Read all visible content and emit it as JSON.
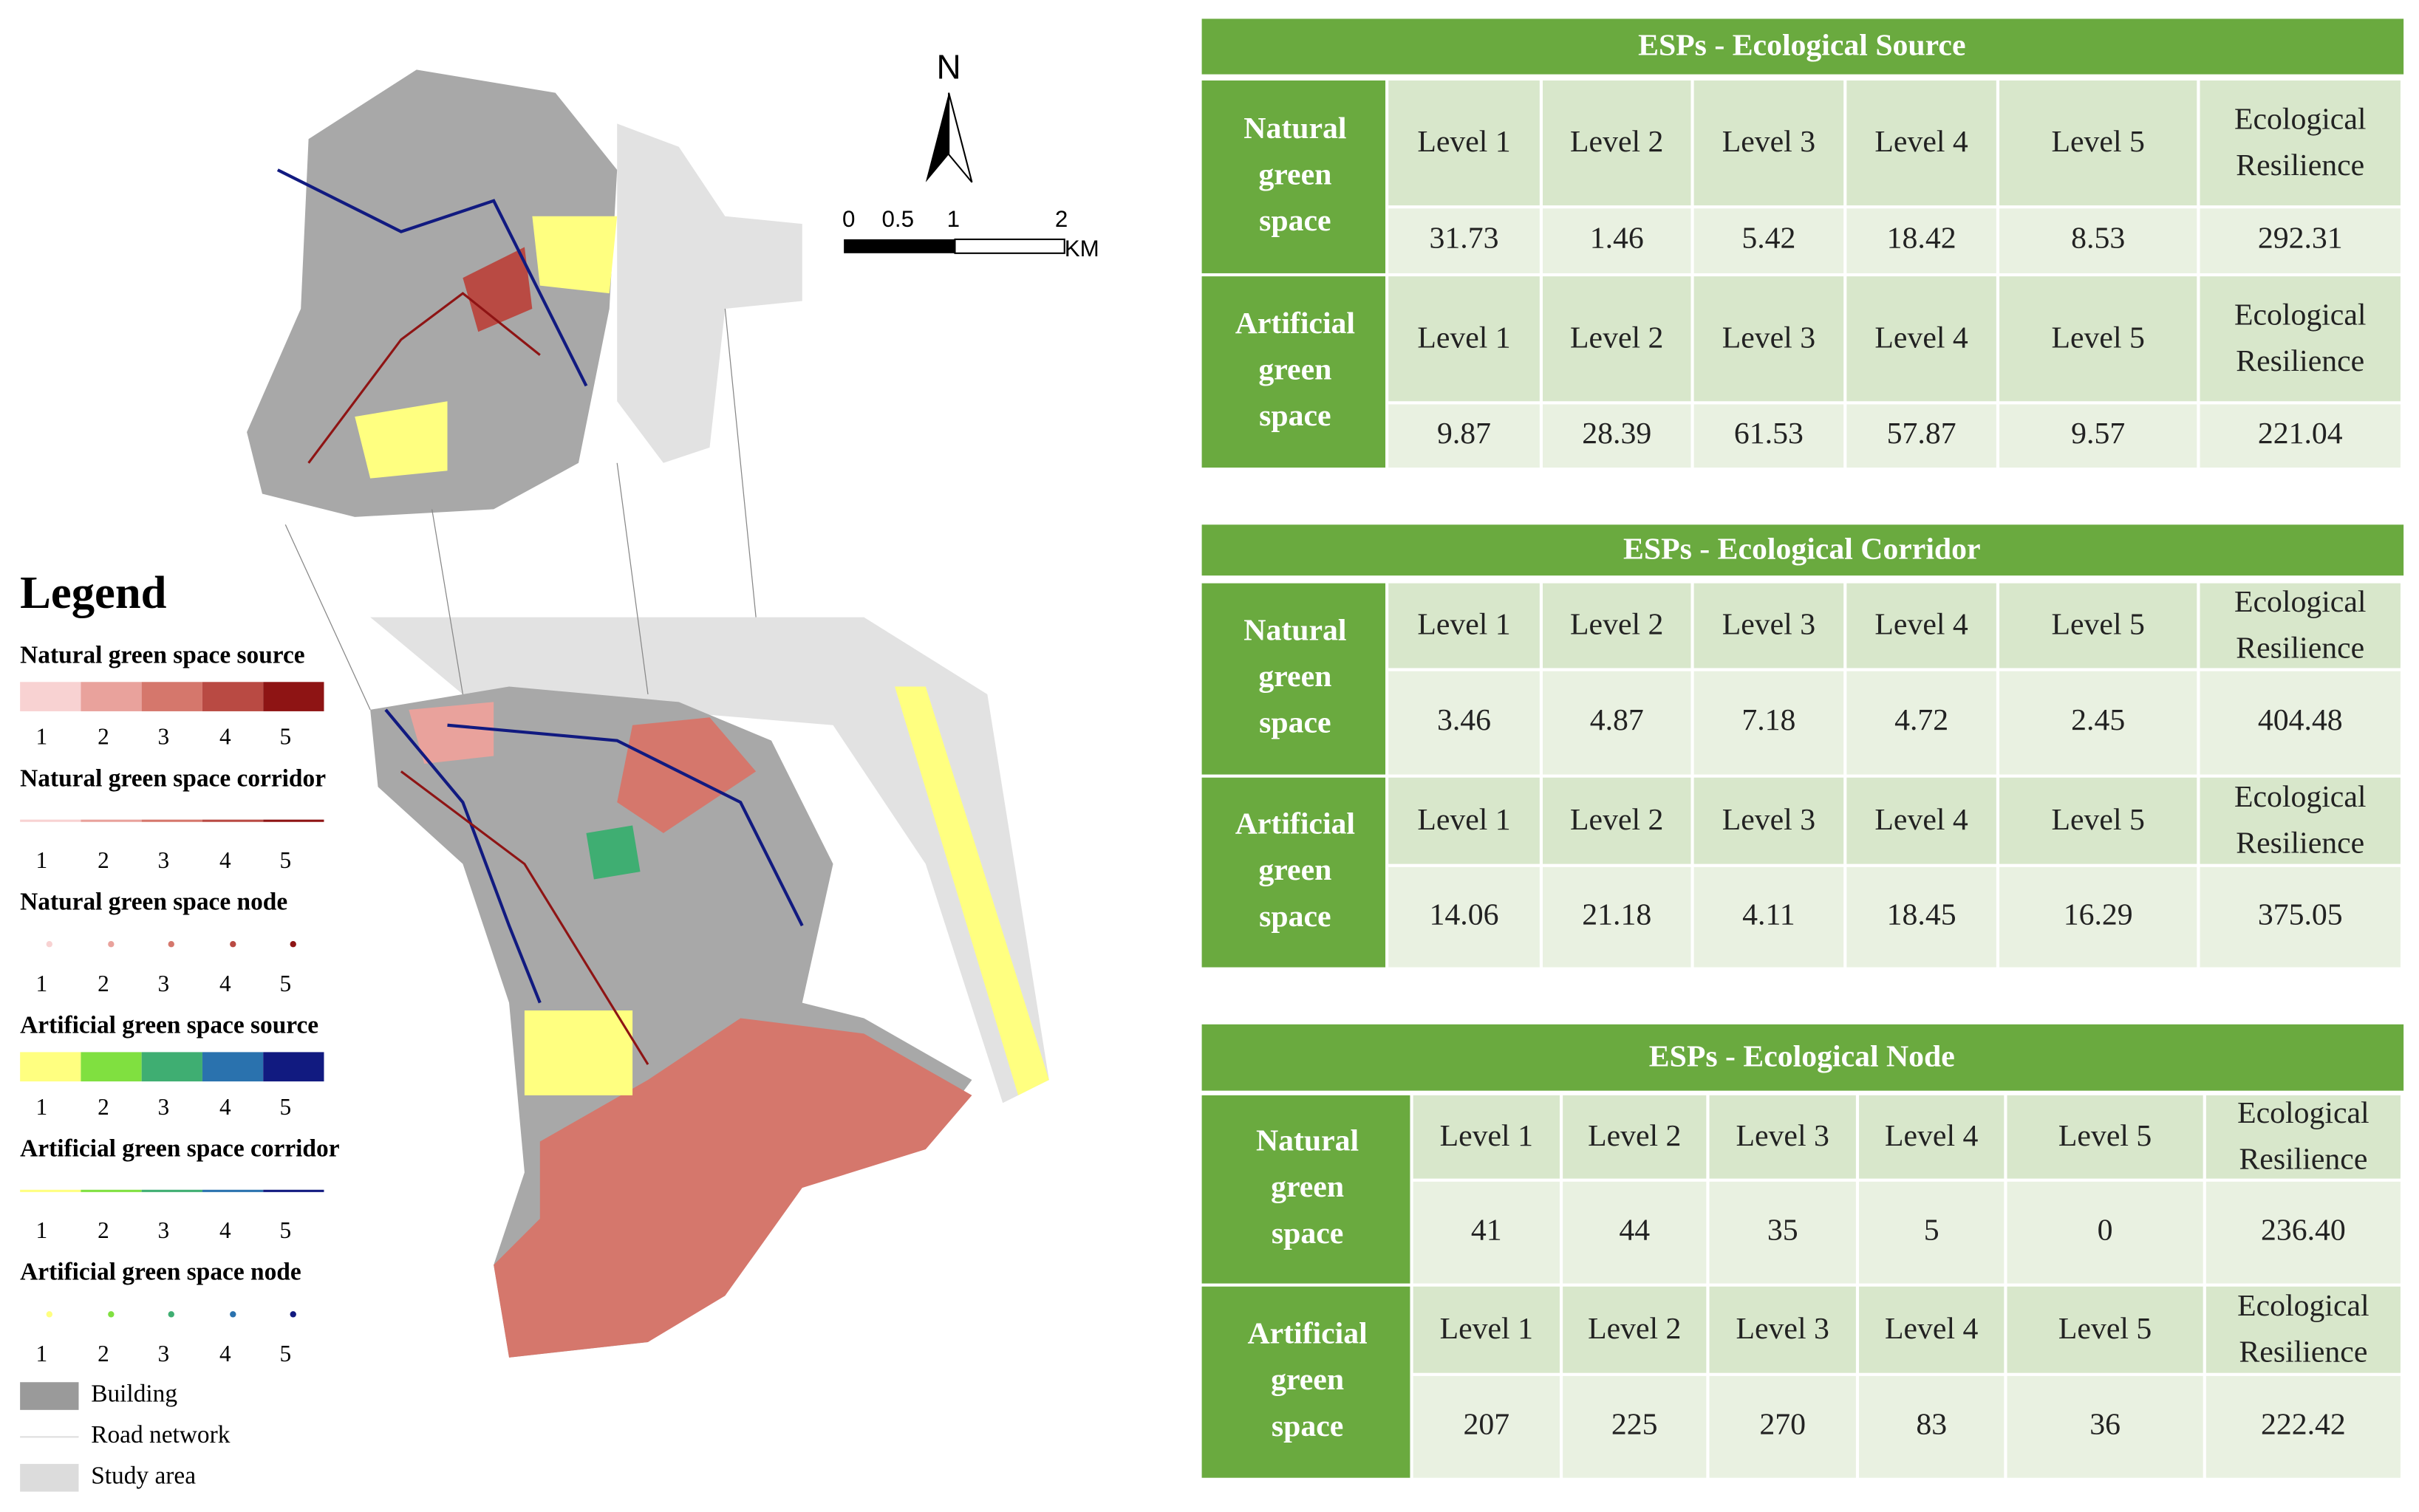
{
  "map": {
    "north": "N",
    "scale_labels": [
      "0",
      "0.5",
      "1",
      "2"
    ],
    "scale_unit": "KM"
  },
  "legend": {
    "title": "Legend",
    "groups": [
      {
        "title": "Natural green space source",
        "kind": "swatch",
        "levels": [
          "1",
          "2",
          "3",
          "4",
          "5"
        ],
        "colors": [
          "#f8d2d2",
          "#e9a29c",
          "#d5776c",
          "#b94a43",
          "#8e1414"
        ]
      },
      {
        "title": "Natural green space corridor",
        "kind": "line",
        "levels": [
          "1",
          "2",
          "3",
          "4",
          "5"
        ],
        "colors": [
          "#f8d2d2",
          "#e9a29c",
          "#d5776c",
          "#b94a43",
          "#8e1414"
        ]
      },
      {
        "title": "Natural green space node",
        "kind": "dot",
        "levels": [
          "1",
          "2",
          "3",
          "4",
          "5"
        ],
        "colors": [
          "#f8d2d2",
          "#e9a29c",
          "#d5776c",
          "#b94a43",
          "#8e1414"
        ]
      },
      {
        "title": "Artificial green space source",
        "kind": "swatch",
        "levels": [
          "1",
          "2",
          "3",
          "4",
          "5"
        ],
        "colors": [
          "#ffff80",
          "#80e040",
          "#3fae72",
          "#2a72ae",
          "#111a80"
        ]
      },
      {
        "title": "Artificial green space corridor",
        "kind": "line",
        "levels": [
          "1",
          "2",
          "3",
          "4",
          "5"
        ],
        "colors": [
          "#ffff80",
          "#80e040",
          "#3fae72",
          "#2a72ae",
          "#111a80"
        ]
      },
      {
        "title": "Artificial green space node",
        "kind": "dot",
        "levels": [
          "1",
          "2",
          "3",
          "4",
          "5"
        ],
        "colors": [
          "#ffff80",
          "#80e040",
          "#3fae72",
          "#2a72ae",
          "#111a80"
        ]
      }
    ],
    "extras": [
      {
        "label": "Building",
        "color": "#9a9a9a"
      },
      {
        "label": "Road network",
        "color": "#f0f0f0"
      },
      {
        "label": "Study area",
        "color": "#dcdcdc"
      }
    ]
  },
  "tables": [
    {
      "title": "ESPs - Ecological Source",
      "headers": [
        "Level 1",
        "Level 2",
        "Level 3",
        "Level 4",
        "Level 5",
        "Ecological Resilience"
      ],
      "groups": [
        {
          "name": "Natural green space",
          "values": [
            "31.73",
            "1.46",
            "5.42",
            "18.42",
            "8.53",
            "292.31"
          ]
        },
        {
          "name": "Artificial green space",
          "values": [
            "9.87",
            "28.39",
            "61.53",
            "57.87",
            "9.57",
            "221.04"
          ]
        }
      ]
    },
    {
      "title": "ESPs - Ecological Corridor",
      "headers": [
        "Level 1",
        "Level 2",
        "Level 3",
        "Level 4",
        "Level 5",
        "Ecological Resilience"
      ],
      "groups": [
        {
          "name": "Natural green space",
          "values": [
            "3.46",
            "4.87",
            "7.18",
            "4.72",
            "2.45",
            "404.48"
          ]
        },
        {
          "name": "Artificial green space",
          "values": [
            "14.06",
            "21.18",
            "4.11",
            "18.45",
            "16.29",
            "375.05"
          ]
        }
      ]
    },
    {
      "title": "ESPs - Ecological Node",
      "headers": [
        "Level 1",
        "Level 2",
        "Level 3",
        "Level 4",
        "Level 5",
        "Ecological Resilience"
      ],
      "groups": [
        {
          "name": "Natural green space",
          "values": [
            "41",
            "44",
            "35",
            "5",
            "0",
            "236.40"
          ]
        },
        {
          "name": "Artificial green space",
          "values": [
            "207",
            "225",
            "270",
            "83",
            "36",
            "222.42"
          ]
        }
      ]
    }
  ]
}
